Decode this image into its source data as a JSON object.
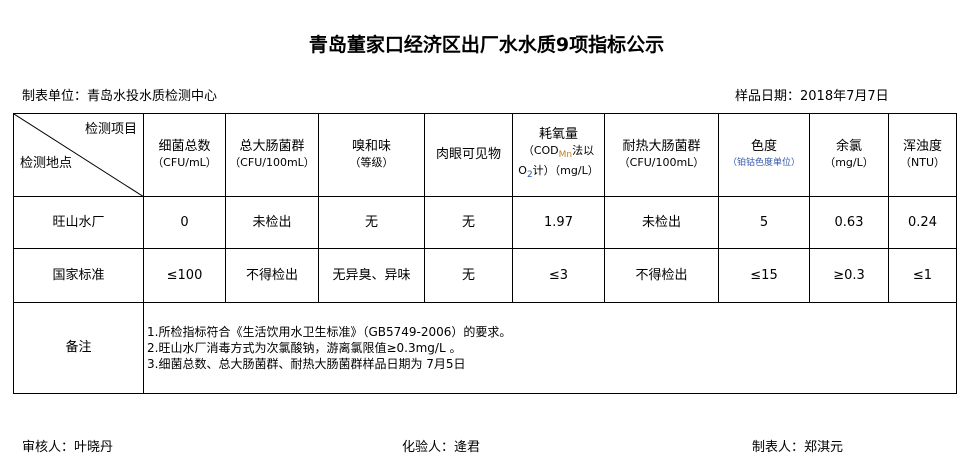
{
  "title": "青岛董家口经济区出厂水水质9项指标公示",
  "unit": "制表单位：青岛水投水质检测中心",
  "sample_date": "样品日期：2018年7月7日",
  "header": {
    "item": "检测项目",
    "site": "检测地点",
    "cols": [
      {
        "name": "细菌总数",
        "unit": "（CFU/mL）"
      },
      {
        "name": "总大肠菌群",
        "unit": "（CFU/100mL）"
      },
      {
        "name": "嗅和味",
        "unit": "（等级）"
      },
      {
        "name": "肉眼可见物",
        "unit": ""
      },
      {
        "name": "耗氧量",
        "unit": "（COD",
        "sub": "Mn",
        "unit2": "法以",
        "unit3": "O",
        "sub2": "2",
        "unit4": "计）（mg/L）"
      },
      {
        "name": "耐热大肠菌群",
        "unit": "（CFU/100mL）"
      },
      {
        "name": "色度",
        "unit": "（铂钴色度单位）"
      },
      {
        "name": "余氯",
        "unit": "（mg/L）"
      },
      {
        "name": "浑浊度",
        "unit": "（NTU）"
      }
    ]
  },
  "rows": [
    {
      "site": "旺山水厂",
      "values": [
        "0",
        "未检出",
        "无",
        "无",
        "1.97",
        "未检出",
        "5",
        "0.63",
        "0.24"
      ]
    },
    {
      "site": "国家标准",
      "values": [
        "≤100",
        "不得检出",
        "无异臭、异味",
        "无",
        "≤3",
        "不得检出",
        "≤15",
        "≥0.3",
        "≤1"
      ]
    }
  ],
  "notes_label": "备注",
  "notes": [
    "1.所检指标符合《生活饮用水卫生标准》（GB5749-2006）的要求。",
    "2.旺山水厂消毒方式为次氯酸钠，游离氯限值≥0.3mg/L 。",
    "3.细菌总数、总大肠菌群、耐热大肠菌群样品日期为 7月5日"
  ],
  "footer": {
    "reviewer": "审核人：叶晓丹",
    "tester": "化验人：逄君",
    "preparer": "制表人：郑淇元"
  }
}
